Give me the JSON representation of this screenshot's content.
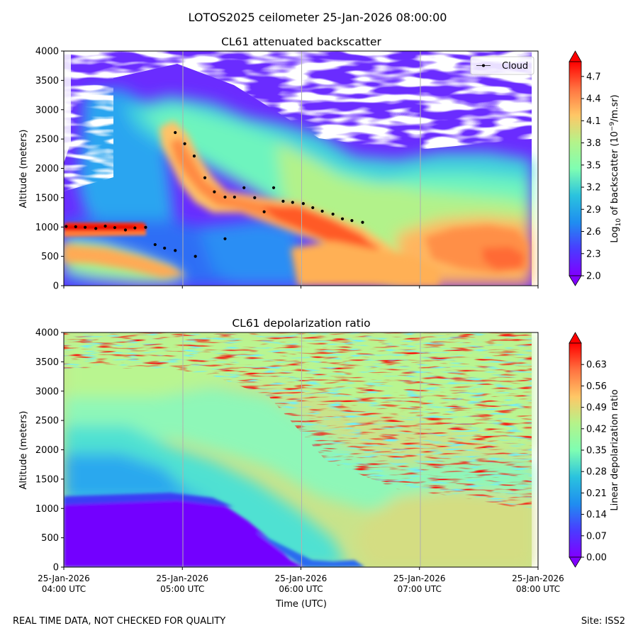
{
  "figure": {
    "suptitle": "LOTOS2025 ceilometer 25-Jan-2026 08:00:00",
    "footer_left": "REAL TIME DATA, NOT CHECKED FOR QUALITY",
    "footer_right": "Site: ISS2"
  },
  "chart_data": [
    {
      "type": "heatmap",
      "title": "CL61 attenuated backscatter",
      "xlabel": "Time (UTC)",
      "ylabel": "Altitude (meters)",
      "x_ticks": [
        {
          "date": "25-Jan-2026",
          "time": "04:00 UTC",
          "hour": 4
        },
        {
          "date": "25-Jan-2026",
          "time": "05:00 UTC",
          "hour": 5
        },
        {
          "date": "25-Jan-2026",
          "time": "06:00 UTC",
          "hour": 6
        },
        {
          "date": "25-Jan-2026",
          "time": "07:00 UTC",
          "hour": 7
        },
        {
          "date": "25-Jan-2026",
          "time": "08:00 UTC",
          "hour": 8
        }
      ],
      "xlim": [
        4,
        8
      ],
      "ylim": [
        0,
        4000
      ],
      "y_ticks": [
        "0",
        "500",
        "1000",
        "1500",
        "2000",
        "2500",
        "3000",
        "3500",
        "4000"
      ],
      "colorbar": {
        "label_base": "Log",
        "label_sub": "10",
        "label_mid": " of backscatter (10",
        "label_sup": "−9",
        "label_end": "/m.sr)",
        "ticks": [
          "2.0",
          "2.3",
          "2.6",
          "2.9",
          "3.2",
          "3.5",
          "3.8",
          "4.1",
          "4.4",
          "4.7"
        ],
        "range": [
          2.0,
          4.9
        ]
      },
      "legend": {
        "label": "Cloud",
        "position": "upper right"
      },
      "cloud_points": [
        {
          "hour": 4.02,
          "alt": 1010
        },
        {
          "hour": 4.1,
          "alt": 1005
        },
        {
          "hour": 4.18,
          "alt": 995
        },
        {
          "hour": 4.27,
          "alt": 975
        },
        {
          "hour": 4.35,
          "alt": 1015
        },
        {
          "hour": 4.43,
          "alt": 990
        },
        {
          "hour": 4.52,
          "alt": 950
        },
        {
          "hour": 4.6,
          "alt": 985
        },
        {
          "hour": 4.69,
          "alt": 995
        },
        {
          "hour": 4.77,
          "alt": 700
        },
        {
          "hour": 4.85,
          "alt": 640
        },
        {
          "hour": 4.94,
          "alt": 600
        },
        {
          "hour": 4.94,
          "alt": 2610
        },
        {
          "hour": 5.02,
          "alt": 2420
        },
        {
          "hour": 5.1,
          "alt": 2210
        },
        {
          "hour": 5.11,
          "alt": 500
        },
        {
          "hour": 5.19,
          "alt": 1840
        },
        {
          "hour": 5.27,
          "alt": 1600
        },
        {
          "hour": 5.36,
          "alt": 1510
        },
        {
          "hour": 5.36,
          "alt": 800
        },
        {
          "hour": 5.44,
          "alt": 1510
        },
        {
          "hour": 5.52,
          "alt": 1670
        },
        {
          "hour": 5.61,
          "alt": 1500
        },
        {
          "hour": 5.69,
          "alt": 1260
        },
        {
          "hour": 5.77,
          "alt": 1670
        },
        {
          "hour": 5.85,
          "alt": 1440
        },
        {
          "hour": 5.93,
          "alt": 1420
        },
        {
          "hour": 6.02,
          "alt": 1400
        },
        {
          "hour": 6.1,
          "alt": 1330
        },
        {
          "hour": 6.18,
          "alt": 1270
        },
        {
          "hour": 6.27,
          "alt": 1220
        },
        {
          "hour": 6.35,
          "alt": 1140
        },
        {
          "hour": 6.43,
          "alt": 1110
        },
        {
          "hour": 6.52,
          "alt": 1080
        }
      ]
    },
    {
      "type": "heatmap",
      "title": "CL61 depolarization ratio",
      "xlabel": "Time (UTC)",
      "ylabel": "Altitude (meters)",
      "xlim": [
        4,
        8
      ],
      "ylim": [
        0,
        4000
      ],
      "y_ticks": [
        "0",
        "500",
        "1000",
        "1500",
        "2000",
        "2500",
        "3000",
        "3500",
        "4000"
      ],
      "colorbar": {
        "label": "Linear depolarization ratio",
        "ticks": [
          "0.00",
          "0.07",
          "0.14",
          "0.21",
          "0.28",
          "0.35",
          "0.42",
          "0.49",
          "0.56",
          "0.63"
        ],
        "range": [
          0.0,
          0.7
        ]
      }
    }
  ],
  "colors": {
    "grid": "#b0b0b0",
    "cloud_marker": "#000000"
  }
}
